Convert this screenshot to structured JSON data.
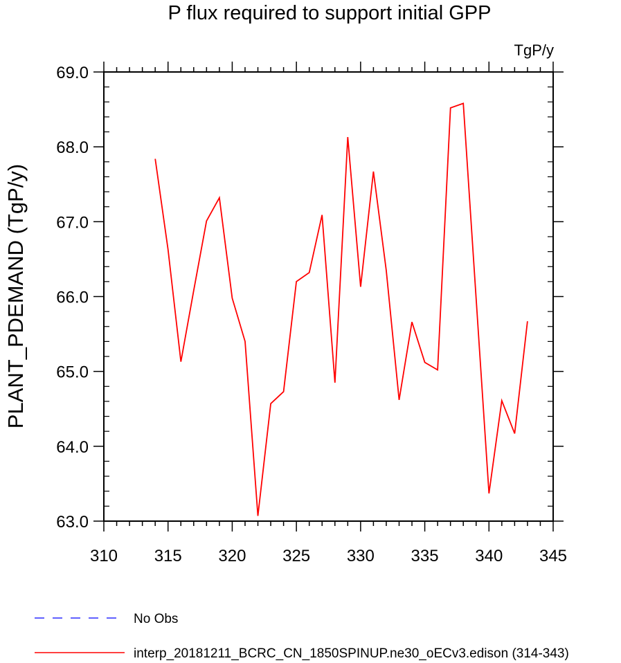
{
  "chart_data": {
    "type": "line",
    "title": "P flux required to support initial GPP",
    "units": "TgP/y",
    "ylabel": "PLANT_PDEMAND  (TgP/y)",
    "xlabel": "",
    "xlim": [
      310,
      345
    ],
    "ylim": [
      63.0,
      69.0
    ],
    "x_ticks": [
      310,
      315,
      320,
      325,
      330,
      335,
      340,
      345
    ],
    "x_tick_labels": [
      "310",
      "315",
      "320",
      "325",
      "330",
      "335",
      "340",
      "345"
    ],
    "y_ticks": [
      63.0,
      64.0,
      65.0,
      66.0,
      67.0,
      68.0,
      69.0
    ],
    "y_tick_labels": [
      "63.0",
      "64.0",
      "65.0",
      "66.0",
      "67.0",
      "68.0",
      "69.0"
    ],
    "grid": false,
    "legend_position": "bottom",
    "series": [
      {
        "name": "interp_20181211_BCRC_CN_1850SPINUP.ne30_oECv3.edison (314-343)",
        "color": "#ff0000",
        "x": [
          314,
          315,
          316,
          317,
          318,
          319,
          320,
          321,
          322,
          323,
          324,
          325,
          326,
          327,
          328,
          329,
          330,
          331,
          332,
          333,
          334,
          335,
          336,
          337,
          338,
          339,
          340,
          341,
          342,
          343
        ],
        "values": [
          67.84,
          66.63,
          65.13,
          66.08,
          67.01,
          67.32,
          65.98,
          65.4,
          63.07,
          64.57,
          64.73,
          66.2,
          66.32,
          67.09,
          64.85,
          68.13,
          66.13,
          67.67,
          66.35,
          64.62,
          65.66,
          65.12,
          65.02,
          68.52,
          68.58,
          65.98,
          63.37,
          64.61,
          64.17,
          65.67
        ]
      }
    ],
    "legend": [
      {
        "label": "No Obs",
        "color": "#0000ff",
        "style": "dashed"
      },
      {
        "label": "interp_20181211_BCRC_CN_1850SPINUP.ne30_oECv3.edison (314-343)",
        "color": "#ff0000",
        "style": "solid"
      }
    ]
  }
}
